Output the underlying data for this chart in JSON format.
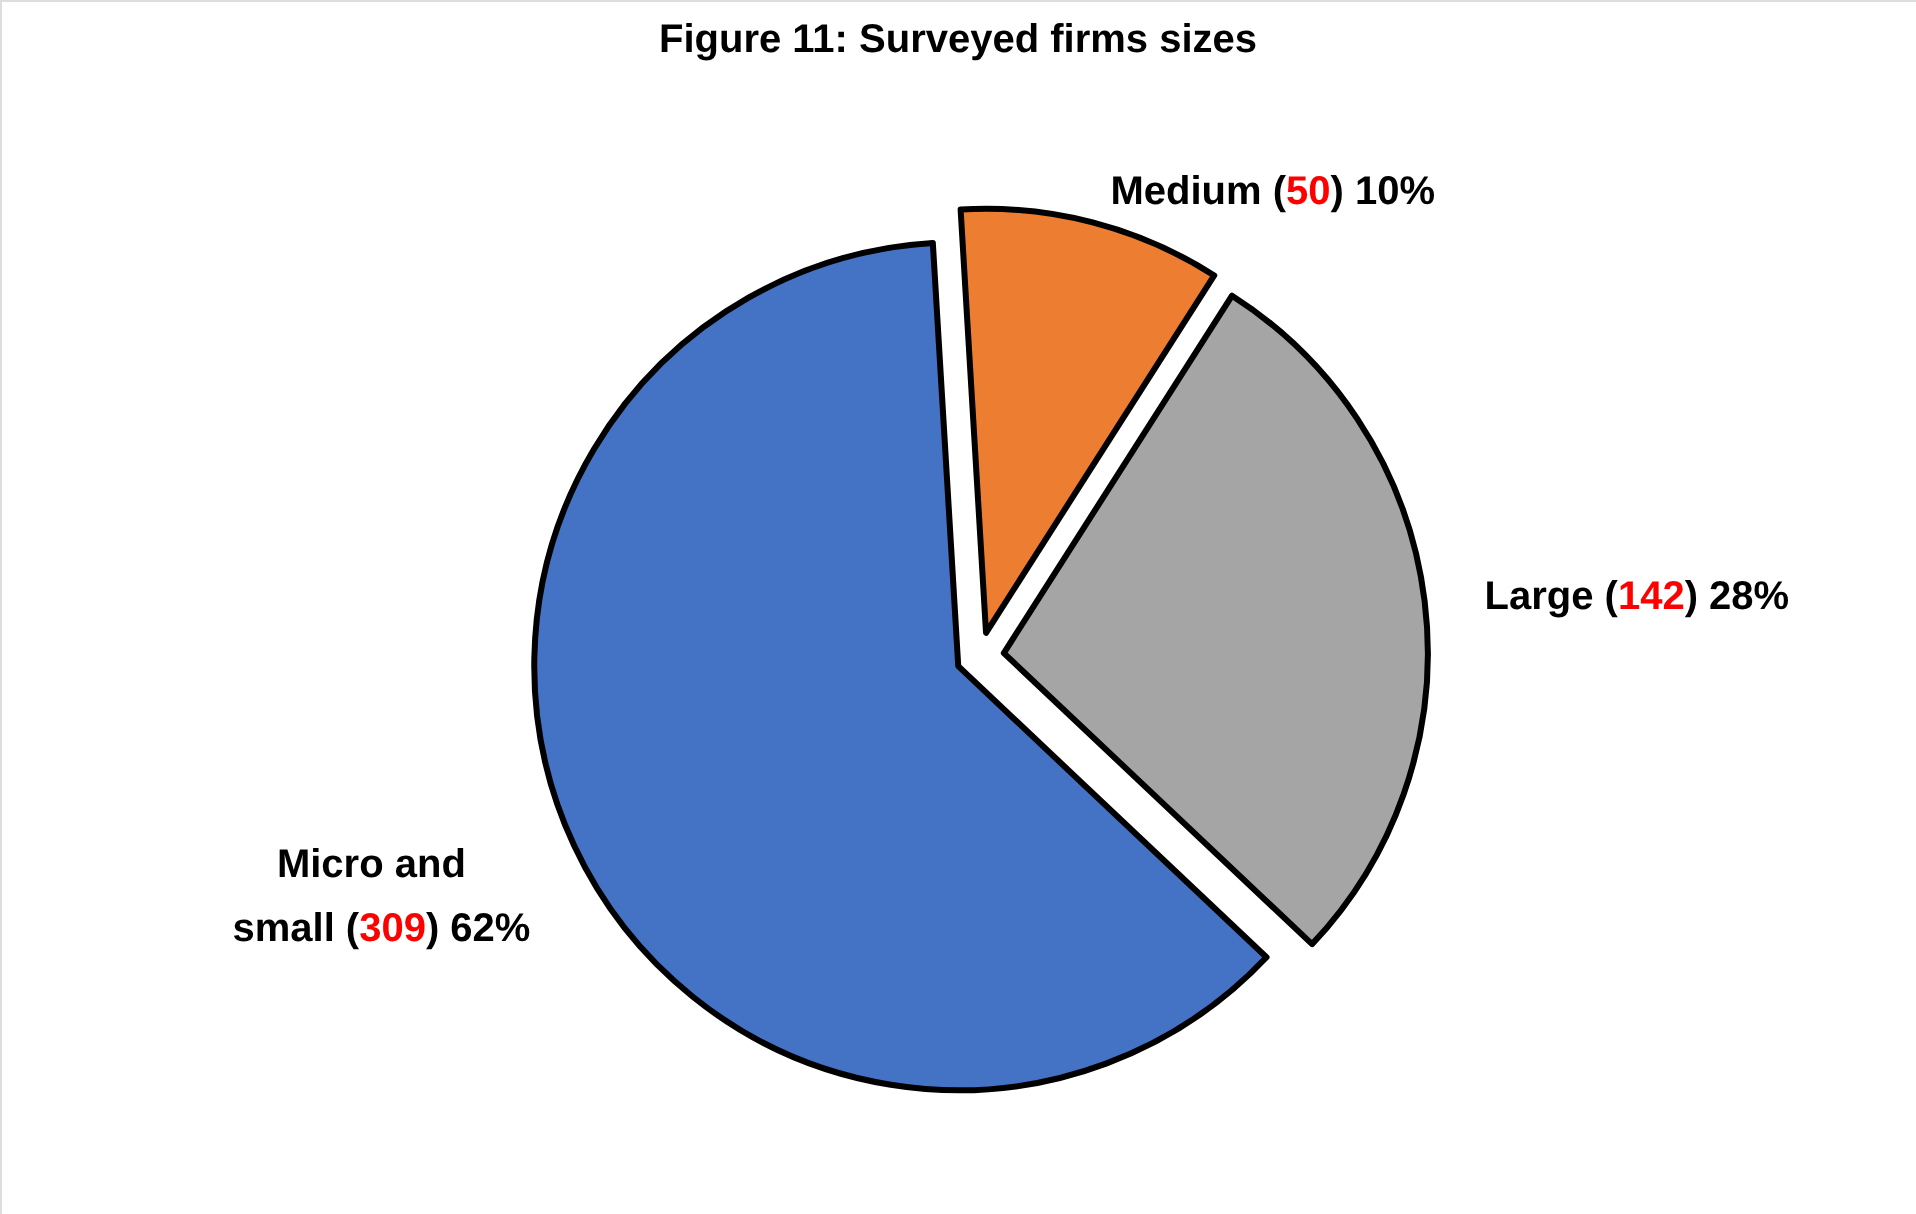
{
  "chart_data": {
    "type": "pie",
    "title": "Figure 11: Surveyed firms sizes",
    "categories": [
      "Medium",
      "Large",
      "Micro and small"
    ],
    "values": [
      10,
      28,
      62
    ],
    "colors": [
      "#ed7d31",
      "#a5a5a5",
      "#4472c4"
    ],
    "value_labels": [
      "(50) 10%",
      "(142) 28%",
      "(309) 62%"
    ]
  }
}
